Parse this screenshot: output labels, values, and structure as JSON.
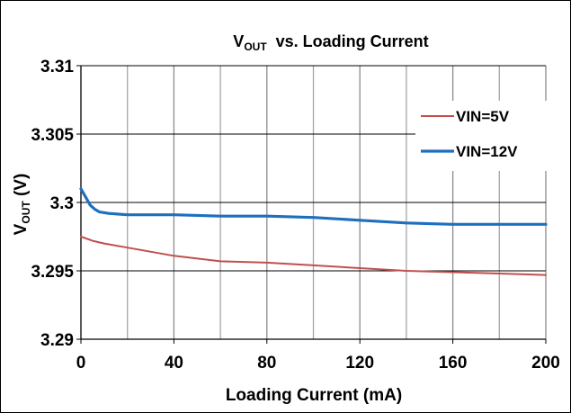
{
  "chart_data": {
    "type": "line",
    "title_main": "V",
    "title_sub": "OUT",
    "title_rest": "  vs. Loading Current",
    "xlabel": "Loading Current (mA)",
    "ylabel_main": "V",
    "ylabel_sub": "OUT",
    "ylabel_rest": " (V)",
    "xlim": [
      0,
      200
    ],
    "ylim": [
      3.29,
      3.31
    ],
    "xticks": [
      0,
      40,
      80,
      120,
      160,
      200
    ],
    "xtick_labels": [
      "0",
      "40",
      "80",
      "120",
      "160",
      "200"
    ],
    "yticks": [
      3.29,
      3.295,
      3.3,
      3.305,
      3.31
    ],
    "ytick_labels": [
      "3.29",
      "3.295",
      "3.3",
      "3.305",
      "3.31"
    ],
    "x_minor_grid": [
      20,
      60,
      100,
      140,
      180
    ],
    "grid": true,
    "legend_position": "right",
    "series": [
      {
        "name": "VIN=5V",
        "color": "#c0504d",
        "x": [
          0,
          5,
          10,
          20,
          40,
          60,
          80,
          100,
          120,
          140,
          160,
          180,
          200
        ],
        "y": [
          3.2975,
          3.2972,
          3.297,
          3.2967,
          3.2961,
          3.2957,
          3.2956,
          3.2954,
          3.2952,
          3.295,
          3.2949,
          3.2948,
          3.2947
        ]
      },
      {
        "name": "VIN=12V",
        "color": "#1f6fbf",
        "x": [
          0,
          2,
          4,
          6,
          8,
          12,
          20,
          40,
          60,
          80,
          100,
          120,
          140,
          160,
          180,
          200
        ],
        "y": [
          3.301,
          3.3004,
          3.2998,
          3.2995,
          3.2993,
          3.2992,
          3.2991,
          3.2991,
          3.299,
          3.299,
          3.2989,
          3.2987,
          3.2985,
          3.2984,
          3.2984,
          3.2984
        ]
      }
    ]
  }
}
